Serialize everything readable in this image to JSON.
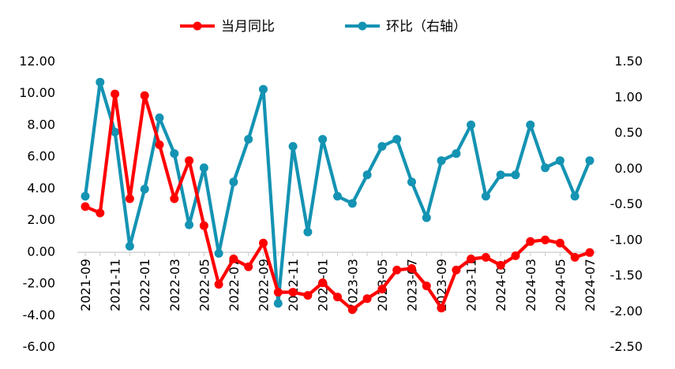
{
  "chart_data": {
    "type": "line",
    "title": "",
    "legend_position": "top-center",
    "grid": false,
    "categories": [
      "2021-09",
      "2021-10",
      "2021-11",
      "2021-12",
      "2022-01",
      "2022-02",
      "2022-03",
      "2022-04",
      "2022-05",
      "2022-06",
      "2022-07",
      "2022-08",
      "2022-09",
      "2022-10",
      "2022-11",
      "2022-12",
      "2023-01",
      "2023-02",
      "2023-03",
      "2023-04",
      "2023-05",
      "2023-06",
      "2023-07",
      "2023-08",
      "2023-09",
      "2023-10",
      "2023-11",
      "2023-12",
      "2024-01",
      "2024-02",
      "2024-03",
      "2024-04",
      "2024-05",
      "2024-06",
      "2024-07"
    ],
    "x_tick_labels": [
      "2021-09",
      "2021-11",
      "2022-01",
      "2022-03",
      "2022-05",
      "2022-07",
      "2022-09",
      "2022-11",
      "2023-01",
      "2023-03",
      "2023-05",
      "2023-07",
      "2023-09",
      "2023-11",
      "2024-01",
      "2024-03",
      "2024-05",
      "2024-07"
    ],
    "left_axis": {
      "ylim": [
        -6,
        12
      ],
      "ticks": [
        "12.00",
        "10.00",
        "8.00",
        "6.00",
        "4.00",
        "2.00",
        "0.00",
        "-2.00",
        "-4.00",
        "-6.00"
      ]
    },
    "right_axis": {
      "ylim": [
        -2.5,
        1.5
      ],
      "ticks": [
        "1.50",
        "1.00",
        "0.50",
        "0.00",
        "-0.50",
        "-1.00",
        "-1.50",
        "-2.00",
        "-2.50"
      ]
    },
    "series": [
      {
        "name": "当月同比",
        "axis": "left",
        "color": "#ff0000",
        "values": [
          2.8,
          2.4,
          9.9,
          3.3,
          9.8,
          6.7,
          3.3,
          5.7,
          1.6,
          -2.1,
          -0.5,
          -1.0,
          0.5,
          -2.6,
          -2.6,
          -2.8,
          -2.0,
          -2.9,
          -3.7,
          -3.0,
          -2.4,
          -1.2,
          -1.1,
          -2.2,
          -3.6,
          -1.2,
          -0.5,
          -0.4,
          -0.9,
          -0.3,
          0.6,
          0.7,
          0.5,
          -0.4,
          -0.1
        ]
      },
      {
        "name": "环比（右轴）",
        "axis": "right",
        "color": "#1493b3",
        "values": [
          -0.4,
          1.2,
          0.5,
          -1.1,
          -0.3,
          0.7,
          0.2,
          -0.8,
          0.0,
          -1.2,
          -0.2,
          0.4,
          1.1,
          -1.9,
          0.3,
          -0.9,
          0.4,
          -0.4,
          -0.5,
          -0.1,
          0.3,
          0.4,
          -0.2,
          -0.7,
          0.1,
          0.2,
          0.6,
          -0.4,
          -0.1,
          -0.1,
          0.6,
          0.0,
          0.1,
          -0.4,
          0.1
        ]
      }
    ]
  }
}
